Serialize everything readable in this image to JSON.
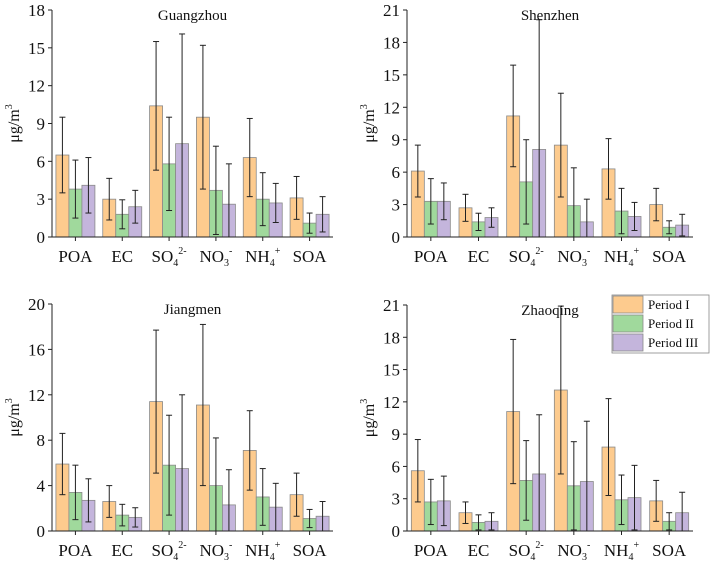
{
  "chart_data": {
    "type": "bar",
    "ylabel": "μg/m",
    "ylabel_sup": "3",
    "categories": [
      {
        "main": "POA",
        "sub": "",
        "sup": ""
      },
      {
        "main": "EC",
        "sub": "",
        "sup": ""
      },
      {
        "main": "SO",
        "sub": "4",
        "sup": "2-"
      },
      {
        "main": "NO",
        "sub": "3",
        "sup": "-"
      },
      {
        "main": "NH",
        "sub": "4",
        "sup": "+"
      },
      {
        "main": "SOA",
        "sub": "",
        "sup": ""
      }
    ],
    "legend": {
      "placement": "top-right",
      "entries": [
        "Period I",
        "Period II",
        "Period III"
      ]
    },
    "colors": [
      "#FDCB8E",
      "#A0D99C",
      "#C4B5DC"
    ],
    "panels": [
      {
        "title": "Guangzhou",
        "ylim": [
          0,
          18
        ],
        "yticks": [
          0,
          3,
          6,
          9,
          12,
          15,
          18
        ],
        "series": [
          {
            "name": "Period I",
            "values": [
              6.5,
              3.0,
              10.4,
              9.5,
              6.3,
              3.1
            ],
            "errors": [
              3.0,
              1.65,
              5.1,
              5.7,
              3.1,
              1.7
            ]
          },
          {
            "name": "Period II",
            "values": [
              3.8,
              1.8,
              5.8,
              3.7,
              3.0,
              1.1
            ],
            "errors": [
              2.3,
              1.15,
              3.7,
              3.5,
              2.1,
              0.8
            ]
          },
          {
            "name": "Period III",
            "values": [
              4.1,
              2.4,
              7.4,
              2.6,
              2.7,
              1.8
            ],
            "errors": [
              2.2,
              1.3,
              8.7,
              3.2,
              1.55,
              1.4
            ]
          }
        ]
      },
      {
        "title": "Shenzhen",
        "ylim": [
          0,
          21
        ],
        "yticks": [
          0,
          3,
          6,
          9,
          12,
          15,
          18,
          21
        ],
        "series": [
          {
            "name": "Period I",
            "values": [
              6.1,
              2.7,
              11.2,
              8.5,
              6.3,
              3.0
            ],
            "errors": [
              2.4,
              1.25,
              4.7,
              4.8,
              2.8,
              1.5
            ]
          },
          {
            "name": "Period II",
            "values": [
              3.3,
              1.4,
              5.1,
              2.9,
              2.4,
              0.9
            ],
            "errors": [
              2.1,
              0.8,
              3.9,
              3.5,
              2.1,
              0.6
            ]
          },
          {
            "name": "Period III",
            "values": [
              3.3,
              1.8,
              8.1,
              1.4,
              1.9,
              1.1
            ],
            "errors": [
              1.7,
              0.9,
              12.0,
              2.1,
              1.3,
              1.0
            ]
          }
        ]
      },
      {
        "title": "Jiangmen",
        "ylim": [
          0,
          20
        ],
        "yticks": [
          0,
          4,
          8,
          12,
          16,
          20
        ],
        "series": [
          {
            "name": "Period I",
            "values": [
              5.9,
              2.6,
              11.4,
              11.1,
              7.1,
              3.2
            ],
            "errors": [
              2.7,
              1.4,
              6.3,
              7.1,
              3.5,
              1.9
            ]
          },
          {
            "name": "Period II",
            "values": [
              3.4,
              1.4,
              5.8,
              4.0,
              3.0,
              1.1
            ],
            "errors": [
              2.4,
              0.95,
              4.4,
              4.2,
              2.5,
              0.8
            ]
          },
          {
            "name": "Period III",
            "values": [
              2.7,
              1.2,
              5.5,
              2.3,
              2.1,
              1.3
            ],
            "errors": [
              1.9,
              0.85,
              6.5,
              3.1,
              2.1,
              1.3
            ]
          }
        ]
      },
      {
        "title": "Zhaoqing",
        "ylim": [
          0,
          21
        ],
        "yticks": [
          0,
          3,
          6,
          9,
          12,
          15,
          18,
          21
        ],
        "series": [
          {
            "name": "Period I",
            "values": [
              5.6,
              1.7,
              11.1,
              13.1,
              7.8,
              2.8
            ],
            "errors": [
              2.9,
              1.0,
              6.7,
              7.8,
              4.5,
              1.9
            ]
          },
          {
            "name": "Period II",
            "values": [
              2.7,
              0.8,
              4.7,
              4.2,
              2.9,
              0.9
            ],
            "errors": [
              2.1,
              0.7,
              3.7,
              4.1,
              2.3,
              0.8
            ]
          },
          {
            "name": "Period III",
            "values": [
              2.8,
              0.9,
              5.3,
              4.6,
              3.1,
              1.7
            ],
            "errors": [
              2.3,
              0.8,
              5.5,
              5.6,
              3.0,
              1.9
            ]
          }
        ]
      }
    ]
  }
}
